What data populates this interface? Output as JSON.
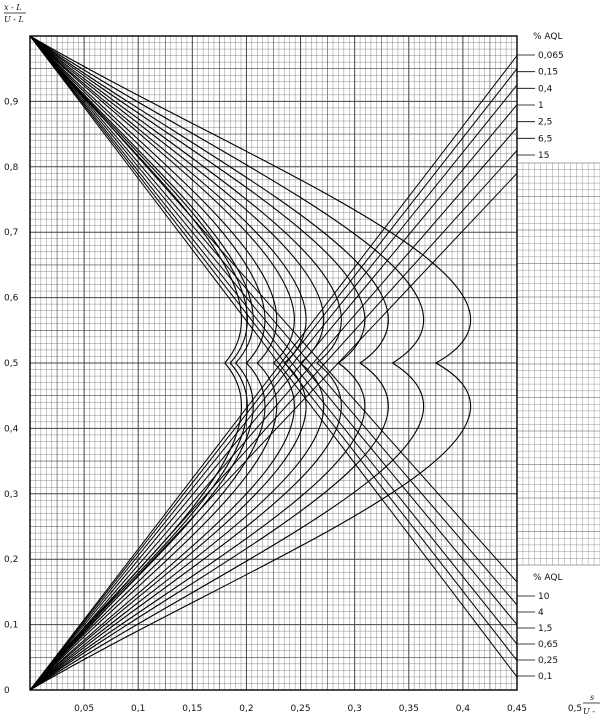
{
  "chart_data": {
    "type": "line",
    "title": "",
    "ylabel_num": "x - L",
    "ylabel_den": "U - L",
    "xlabel_num": "s",
    "xlabel_den": "U -",
    "xlim": [
      0,
      0.5
    ],
    "ylim": [
      0,
      1
    ],
    "grid": true,
    "x_ticks": [
      "0,05",
      "0,1",
      "0,15",
      "0,2",
      "0,25",
      "0,3",
      "0,35",
      "0,4",
      "0,45",
      "0,5"
    ],
    "y_ticks": [
      "0",
      "0,1",
      "0,2",
      "0,3",
      "0,4",
      "0,5",
      "0,6",
      "0,7",
      "0,8",
      "0,9"
    ],
    "legend_top": {
      "title": "% AQL",
      "placement": "top-right",
      "entries": [
        "0,065",
        "0,15",
        "0,4",
        "1",
        "2,5",
        "6,5",
        "15"
      ]
    },
    "legend_bottom": {
      "title": "% AQL",
      "placement": "bottom-right",
      "entries": [
        "10",
        "4",
        "1,5",
        "0,65",
        "0,25",
        "0,1"
      ]
    },
    "series": [
      {
        "aql": "0,065",
        "peak_x": 0.18,
        "end_x": 0.45,
        "end_y_top": 0.97
      },
      {
        "aql": "0,1",
        "peak_x": 0.185,
        "end_x": 0.45,
        "end_y_bottom": 0.02
      },
      {
        "aql": "0,15",
        "peak_x": 0.19,
        "end_x": 0.45,
        "end_y_top": 0.95
      },
      {
        "aql": "0,25",
        "peak_x": 0.2,
        "end_x": 0.45,
        "end_y_bottom": 0.045
      },
      {
        "aql": "0,4",
        "peak_x": 0.21,
        "end_x": 0.45,
        "end_y_top": 0.925
      },
      {
        "aql": "0,65",
        "peak_x": 0.225,
        "end_x": 0.45,
        "end_y_bottom": 0.07
      },
      {
        "aql": "1",
        "peak_x": 0.235,
        "end_x": 0.45,
        "end_y_top": 0.895
      },
      {
        "aql": "1,5",
        "peak_x": 0.25,
        "end_x": 0.45,
        "end_y_bottom": 0.1
      },
      {
        "aql": "2,5",
        "peak_x": 0.265,
        "end_x": 0.45,
        "end_y_top": 0.86
      },
      {
        "aql": "4",
        "peak_x": 0.285,
        "end_x": 0.45,
        "end_y_bottom": 0.13
      },
      {
        "aql": "6,5",
        "peak_x": 0.305,
        "end_x": 0.45,
        "end_y_top": 0.825
      },
      {
        "aql": "10",
        "peak_x": 0.335,
        "end_x": 0.45,
        "end_y_bottom": 0.165
      },
      {
        "aql": "15",
        "peak_x": 0.375,
        "end_x": 0.45,
        "end_y_top": 0.79
      }
    ]
  }
}
